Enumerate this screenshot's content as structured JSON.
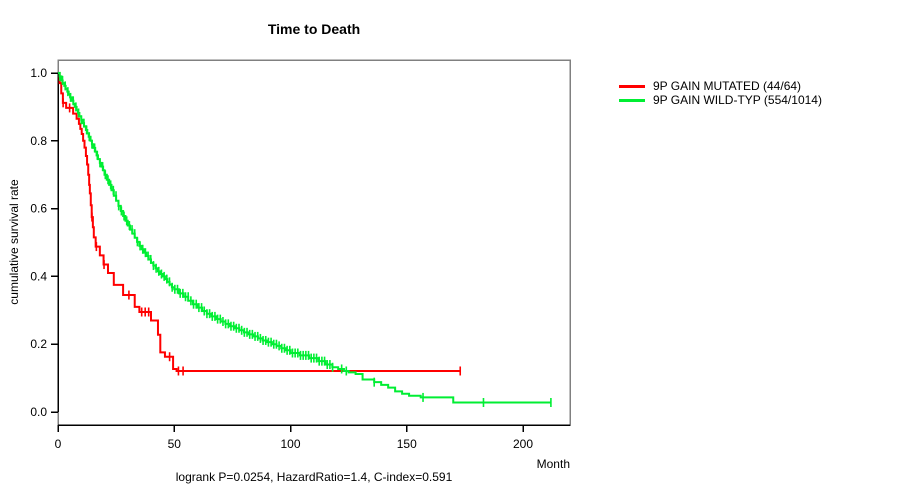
{
  "chart_data": {
    "type": "line",
    "chart_kind": "kaplan-meier-survival",
    "title": "Time to Death",
    "xlabel": "Month",
    "ylabel": "cumulative survival rate",
    "xlim": [
      0,
      220
    ],
    "ylim": [
      0.0,
      1.0
    ],
    "grid": false,
    "legend_position": "right-outside",
    "box_color": "#808080",
    "axis_color": "#000000",
    "x_tick_values": [
      0,
      50,
      100,
      150,
      200
    ],
    "x_tick_labels": [
      "0",
      "50",
      "100",
      "150",
      "200"
    ],
    "y_tick_values": [
      0.0,
      0.2,
      0.4,
      0.6,
      0.8,
      1.0
    ],
    "y_tick_labels": [
      "0.0",
      "0.2",
      "0.4",
      "0.6",
      "0.8",
      "1.0"
    ],
    "annotation": "logrank P=0.0254, HazardRatio=1.4, C-index=0.591",
    "series": [
      {
        "name": "9P GAIN MUTATED (44/64)",
        "color": "#ff0000",
        "events_total": "44/64",
        "end_month": 173,
        "steps": [
          [
            0,
            1.0
          ],
          [
            0.7,
            0.97
          ],
          [
            1.4,
            0.94
          ],
          [
            2.1,
            0.912
          ],
          [
            3.5,
            0.897
          ],
          [
            6.5,
            0.88
          ],
          [
            8,
            0.865
          ],
          [
            9,
            0.85
          ],
          [
            9.6,
            0.835
          ],
          [
            10.2,
            0.82
          ],
          [
            10.8,
            0.8
          ],
          [
            11.4,
            0.78
          ],
          [
            12,
            0.755
          ],
          [
            12.5,
            0.73
          ],
          [
            13,
            0.7
          ],
          [
            13.4,
            0.67
          ],
          [
            13.7,
            0.645
          ],
          [
            14.1,
            0.61
          ],
          [
            14.5,
            0.575
          ],
          [
            15,
            0.545
          ],
          [
            15.4,
            0.515
          ],
          [
            16.2,
            0.488
          ],
          [
            18,
            0.462
          ],
          [
            19.6,
            0.435
          ],
          [
            21.5,
            0.41
          ],
          [
            24,
            0.375
          ],
          [
            28,
            0.345
          ],
          [
            33,
            0.31
          ],
          [
            35,
            0.295
          ],
          [
            40,
            0.27
          ],
          [
            43,
            0.228
          ],
          [
            44,
            0.176
          ],
          [
            46,
            0.163
          ],
          [
            49.5,
            0.127
          ],
          [
            51,
            0.121
          ]
        ],
        "censor_months": [
          2.2,
          5,
          14.6,
          16.5,
          19.8,
          30.5,
          36,
          37.5,
          39,
          48,
          51.8,
          53.8,
          173
        ]
      },
      {
        "name": "9P GAIN WILD-TYP (554/1014)",
        "color": "#00ee33",
        "events_total": "554/1014",
        "end_month": 212,
        "steps": [
          [
            0,
            1.0
          ],
          [
            0.7,
            0.99
          ],
          [
            1.5,
            0.978
          ],
          [
            2,
            0.97
          ],
          [
            2.7,
            0.962
          ],
          [
            3.3,
            0.953
          ],
          [
            4,
            0.945
          ],
          [
            4.6,
            0.937
          ],
          [
            5.2,
            0.928
          ],
          [
            6,
            0.918
          ],
          [
            6.6,
            0.909
          ],
          [
            7.2,
            0.9
          ],
          [
            8,
            0.89
          ],
          [
            8.6,
            0.882
          ],
          [
            9.2,
            0.872
          ],
          [
            10,
            0.862
          ],
          [
            10.6,
            0.852
          ],
          [
            11.2,
            0.843
          ],
          [
            12,
            0.832
          ],
          [
            12.6,
            0.822
          ],
          [
            13.2,
            0.812
          ],
          [
            14,
            0.8
          ],
          [
            14.6,
            0.79
          ],
          [
            15.2,
            0.779
          ],
          [
            16,
            0.768
          ],
          [
            16.6,
            0.757
          ],
          [
            17.2,
            0.746
          ],
          [
            18,
            0.735
          ],
          [
            18.7,
            0.724
          ],
          [
            19.4,
            0.713
          ],
          [
            20,
            0.7
          ],
          [
            21,
            0.685
          ],
          [
            22,
            0.67
          ],
          [
            23,
            0.654
          ],
          [
            24,
            0.638
          ],
          [
            25,
            0.623
          ],
          [
            26,
            0.608
          ],
          [
            27,
            0.593
          ],
          [
            28,
            0.578
          ],
          [
            29,
            0.564
          ],
          [
            30,
            0.55
          ],
          [
            31,
            0.538
          ],
          [
            32,
            0.526
          ],
          [
            33,
            0.514
          ],
          [
            34,
            0.502
          ],
          [
            35,
            0.49
          ],
          [
            36,
            0.48
          ],
          [
            37,
            0.47
          ],
          [
            38,
            0.46
          ],
          [
            39,
            0.45
          ],
          [
            40,
            0.44
          ],
          [
            41,
            0.432
          ],
          [
            42,
            0.424
          ],
          [
            43,
            0.415
          ],
          [
            44,
            0.407
          ],
          [
            45,
            0.4
          ],
          [
            46,
            0.392
          ],
          [
            47,
            0.384
          ],
          [
            48,
            0.376
          ],
          [
            49,
            0.368
          ],
          [
            50,
            0.362
          ],
          [
            52,
            0.35
          ],
          [
            54,
            0.34
          ],
          [
            56,
            0.328
          ],
          [
            58,
            0.318
          ],
          [
            60,
            0.308
          ],
          [
            62,
            0.298
          ],
          [
            64,
            0.29
          ],
          [
            66,
            0.282
          ],
          [
            68,
            0.274
          ],
          [
            70,
            0.267
          ],
          [
            72,
            0.26
          ],
          [
            74,
            0.253
          ],
          [
            76,
            0.247
          ],
          [
            78,
            0.241
          ],
          [
            80,
            0.235
          ],
          [
            82,
            0.229
          ],
          [
            84,
            0.223
          ],
          [
            86,
            0.217
          ],
          [
            88,
            0.211
          ],
          [
            90,
            0.206
          ],
          [
            92,
            0.2
          ],
          [
            94,
            0.195
          ],
          [
            96,
            0.188
          ],
          [
            98,
            0.182
          ],
          [
            100,
            0.174
          ],
          [
            104,
            0.167
          ],
          [
            108,
            0.159
          ],
          [
            112,
            0.15
          ],
          [
            115,
            0.14
          ],
          [
            118,
            0.132
          ],
          [
            120.5,
            0.127
          ],
          [
            123,
            0.121
          ],
          [
            125,
            0.117
          ],
          [
            128,
            0.112
          ],
          [
            131,
            0.096
          ],
          [
            136,
            0.088
          ],
          [
            139,
            0.08
          ],
          [
            142,
            0.072
          ],
          [
            145,
            0.061
          ],
          [
            148,
            0.054
          ],
          [
            151,
            0.048
          ],
          [
            156,
            0.043
          ],
          [
            170,
            0.028
          ]
        ],
        "censor_months": [
          122,
          124,
          136,
          157,
          183,
          212
        ],
        "censor_dense": {
          "from": 0.8,
          "to": 119,
          "step": 1.15
        }
      }
    ]
  }
}
